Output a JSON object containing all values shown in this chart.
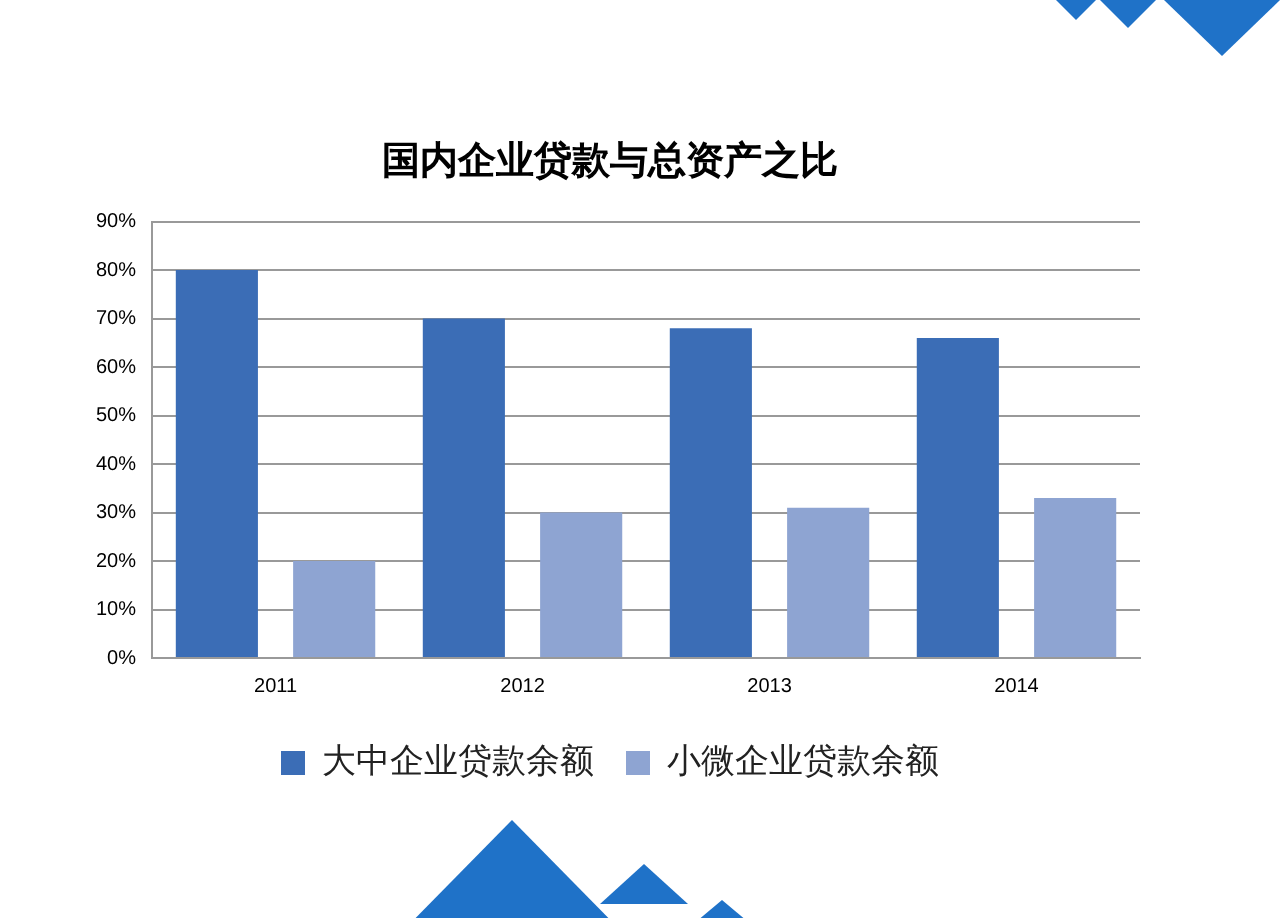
{
  "chart_data": {
    "type": "bar",
    "title": "国内企业贷款与总资产之比",
    "categories": [
      "2011",
      "2012",
      "2013",
      "2014"
    ],
    "series": [
      {
        "name": "大中企业贷款余额",
        "color": "#3b6db6",
        "values": [
          80,
          70,
          68,
          66
        ]
      },
      {
        "name": "小微企业贷款余额",
        "color": "#8ea4d2",
        "values": [
          20,
          30,
          31,
          33
        ]
      }
    ],
    "ylim": [
      0,
      90
    ],
    "yticks": [
      {
        "value": 0,
        "label": "0%"
      },
      {
        "value": 10,
        "label": "10%"
      },
      {
        "value": 20,
        "label": "20%"
      },
      {
        "value": 30,
        "label": "30%"
      },
      {
        "value": 40,
        "label": "40%"
      },
      {
        "value": 50,
        "label": "50%"
      },
      {
        "value": 60,
        "label": "60%"
      },
      {
        "value": 70,
        "label": "70%"
      },
      {
        "value": 80,
        "label": "80%"
      },
      {
        "value": 90,
        "label": "90%"
      }
    ],
    "grid": "y",
    "legend": "bottom"
  }
}
